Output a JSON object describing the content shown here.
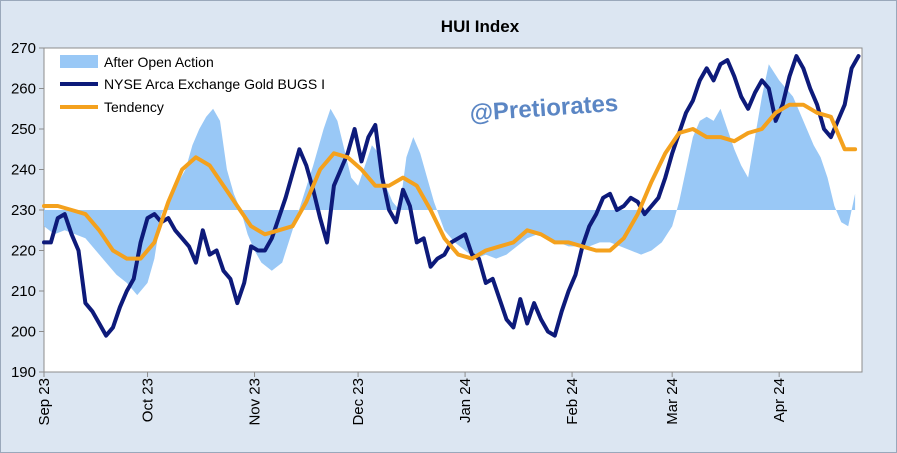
{
  "chart_data": {
    "type": "line",
    "title": "HUI Index",
    "watermark": "@Pretiorates",
    "xlabel": "",
    "ylabel": "",
    "ylim": [
      190,
      270
    ],
    "yticks": [
      190,
      200,
      210,
      220,
      230,
      240,
      250,
      260,
      270
    ],
    "xlim": [
      "2023-09-01",
      "2024-04-25"
    ],
    "xticks": [
      {
        "date": "2023-09-01",
        "label": "Sep 23"
      },
      {
        "date": "2023-10-01",
        "label": "Oct 23"
      },
      {
        "date": "2023-11-01",
        "label": "Nov 23"
      },
      {
        "date": "2023-12-01",
        "label": "Dec 23"
      },
      {
        "date": "2024-01-01",
        "label": "Jan 24"
      },
      {
        "date": "2024-02-01",
        "label": "Feb 24"
      },
      {
        "date": "2024-03-01",
        "label": "Mar 24"
      },
      {
        "date": "2024-04-01",
        "label": "Apr 24"
      }
    ],
    "area_baseline": 230,
    "legend_position": "top-left",
    "grid": false,
    "colors": {
      "area": "#99c8f6",
      "hui": "#0d1a7a",
      "tendency": "#f4a11d",
      "plot_bg": "#ffffff",
      "frame_bg": "#dce6f2"
    },
    "series": [
      {
        "name": "After Open Action",
        "kind": "area",
        "x": [
          "2023-09-01",
          "2023-09-04",
          "2023-09-07",
          "2023-09-10",
          "2023-09-13",
          "2023-09-16",
          "2023-09-19",
          "2023-09-22",
          "2023-09-25",
          "2023-09-28",
          "2023-10-01",
          "2023-10-03",
          "2023-10-05",
          "2023-10-08",
          "2023-10-10",
          "2023-10-12",
          "2023-10-14",
          "2023-10-16",
          "2023-10-18",
          "2023-10-20",
          "2023-10-22",
          "2023-10-24",
          "2023-10-26",
          "2023-10-28",
          "2023-10-30",
          "2023-11-01",
          "2023-11-03",
          "2023-11-06",
          "2023-11-09",
          "2023-11-12",
          "2023-11-15",
          "2023-11-18",
          "2023-11-21",
          "2023-11-23",
          "2023-11-25",
          "2023-11-27",
          "2023-11-29",
          "2023-12-01",
          "2023-12-03",
          "2023-12-05",
          "2023-12-07",
          "2023-12-09",
          "2023-12-11",
          "2023-12-13",
          "2023-12-15",
          "2023-12-17",
          "2023-12-19",
          "2023-12-21",
          "2023-12-23",
          "2023-12-26",
          "2023-12-29",
          "2024-01-01",
          "2024-01-04",
          "2024-01-07",
          "2024-01-10",
          "2024-01-13",
          "2024-01-16",
          "2024-01-19",
          "2024-01-22",
          "2024-01-25",
          "2024-01-28",
          "2024-01-31",
          "2024-02-03",
          "2024-02-06",
          "2024-02-09",
          "2024-02-12",
          "2024-02-15",
          "2024-02-18",
          "2024-02-21",
          "2024-02-24",
          "2024-02-27",
          "2024-03-01",
          "2024-03-03",
          "2024-03-05",
          "2024-03-07",
          "2024-03-09",
          "2024-03-11",
          "2024-03-13",
          "2024-03-15",
          "2024-03-17",
          "2024-03-19",
          "2024-03-21",
          "2024-03-23",
          "2024-03-25",
          "2024-03-27",
          "2024-03-29",
          "2024-04-01",
          "2024-04-03",
          "2024-04-05",
          "2024-04-07",
          "2024-04-09",
          "2024-04-11",
          "2024-04-13",
          "2024-04-15",
          "2024-04-17",
          "2024-04-19",
          "2024-04-21",
          "2024-04-23"
        ],
        "values": [
          226,
          224,
          225,
          224,
          223,
          220,
          217,
          214,
          212,
          209,
          212,
          218,
          229,
          234,
          237,
          240,
          246,
          250,
          253,
          255,
          252,
          240,
          234,
          230,
          224,
          220,
          217,
          215,
          217,
          225,
          233,
          241,
          250,
          255,
          252,
          245,
          238,
          236,
          241,
          246,
          244,
          236,
          232,
          230,
          243,
          248,
          244,
          238,
          232,
          225,
          222,
          220,
          218,
          219,
          218,
          219,
          221,
          223,
          224,
          223,
          222,
          221,
          221,
          221,
          222,
          222,
          221,
          220,
          219,
          220,
          222,
          226,
          232,
          240,
          248,
          252,
          253,
          252,
          255,
          250,
          245,
          241,
          238,
          248,
          258,
          266,
          262,
          260,
          258,
          254,
          250,
          246,
          243,
          238,
          231,
          227,
          226,
          234
        ]
      },
      {
        "name": "NYSE Arca Exchange Gold BUGS I",
        "kind": "line",
        "x": [
          "2023-09-01",
          "2023-09-03",
          "2023-09-05",
          "2023-09-07",
          "2023-09-09",
          "2023-09-11",
          "2023-09-13",
          "2023-09-15",
          "2023-09-17",
          "2023-09-19",
          "2023-09-21",
          "2023-09-23",
          "2023-09-25",
          "2023-09-27",
          "2023-09-29",
          "2023-10-01",
          "2023-10-03",
          "2023-10-05",
          "2023-10-07",
          "2023-10-09",
          "2023-10-11",
          "2023-10-13",
          "2023-10-15",
          "2023-10-17",
          "2023-10-19",
          "2023-10-21",
          "2023-10-23",
          "2023-10-25",
          "2023-10-27",
          "2023-10-29",
          "2023-10-31",
          "2023-11-02",
          "2023-11-04",
          "2023-11-06",
          "2023-11-08",
          "2023-11-10",
          "2023-11-12",
          "2023-11-14",
          "2023-11-16",
          "2023-11-18",
          "2023-11-20",
          "2023-11-22",
          "2023-11-24",
          "2023-11-26",
          "2023-11-28",
          "2023-11-30",
          "2023-12-02",
          "2023-12-04",
          "2023-12-06",
          "2023-12-08",
          "2023-12-10",
          "2023-12-12",
          "2023-12-14",
          "2023-12-16",
          "2023-12-18",
          "2023-12-20",
          "2023-12-22",
          "2023-12-24",
          "2023-12-26",
          "2023-12-28",
          "2023-12-30",
          "2024-01-01",
          "2024-01-03",
          "2024-01-05",
          "2024-01-07",
          "2024-01-09",
          "2024-01-11",
          "2024-01-13",
          "2024-01-15",
          "2024-01-17",
          "2024-01-19",
          "2024-01-21",
          "2024-01-23",
          "2024-01-25",
          "2024-01-27",
          "2024-01-29",
          "2024-01-31",
          "2024-02-02",
          "2024-02-04",
          "2024-02-06",
          "2024-02-08",
          "2024-02-10",
          "2024-02-12",
          "2024-02-14",
          "2024-02-16",
          "2024-02-18",
          "2024-02-20",
          "2024-02-22",
          "2024-02-24",
          "2024-02-26",
          "2024-02-28",
          "2024-03-01",
          "2024-03-03",
          "2024-03-05",
          "2024-03-07",
          "2024-03-09",
          "2024-03-11",
          "2024-03-13",
          "2024-03-15",
          "2024-03-17",
          "2024-03-19",
          "2024-03-21",
          "2024-03-23",
          "2024-03-25",
          "2024-03-27",
          "2024-03-29",
          "2024-03-31",
          "2024-04-02",
          "2024-04-04",
          "2024-04-06",
          "2024-04-08",
          "2024-04-10",
          "2024-04-12",
          "2024-04-14",
          "2024-04-16",
          "2024-04-18",
          "2024-04-20",
          "2024-04-22",
          "2024-04-24"
        ],
        "values": [
          222,
          222,
          228,
          229,
          224,
          220,
          207,
          205,
          202,
          199,
          201,
          206,
          210,
          213,
          222,
          228,
          229,
          227,
          228,
          225,
          223,
          221,
          217,
          225,
          219,
          220,
          215,
          213,
          207,
          212,
          221,
          220,
          220,
          223,
          228,
          233,
          239,
          245,
          241,
          235,
          228,
          222,
          236,
          240,
          244,
          250,
          242,
          248,
          251,
          238,
          230,
          227,
          235,
          231,
          222,
          223,
          216,
          218,
          219,
          222,
          223,
          224,
          219,
          218,
          212,
          213,
          208,
          203,
          201,
          208,
          202,
          207,
          203,
          200,
          199,
          205,
          210,
          214,
          221,
          226,
          229,
          233,
          234,
          230,
          231,
          233,
          232,
          229,
          231,
          233,
          238,
          244,
          249,
          254,
          257,
          262,
          265,
          262,
          266,
          267,
          263,
          258,
          255,
          259,
          262,
          260,
          252,
          256,
          263,
          268,
          265,
          260,
          256,
          250,
          248,
          252,
          256,
          265,
          268
        ]
      },
      {
        "name": "Tendency",
        "kind": "line",
        "x": [
          "2023-09-01",
          "2023-09-05",
          "2023-09-09",
          "2023-09-13",
          "2023-09-17",
          "2023-09-21",
          "2023-09-25",
          "2023-09-29",
          "2023-10-03",
          "2023-10-07",
          "2023-10-11",
          "2023-10-15",
          "2023-10-19",
          "2023-10-23",
          "2023-10-27",
          "2023-10-31",
          "2023-11-04",
          "2023-11-08",
          "2023-11-12",
          "2023-11-16",
          "2023-11-20",
          "2023-11-24",
          "2023-11-28",
          "2023-12-02",
          "2023-12-06",
          "2023-12-10",
          "2023-12-14",
          "2023-12-18",
          "2023-12-22",
          "2023-12-26",
          "2023-12-30",
          "2024-01-03",
          "2024-01-07",
          "2024-01-11",
          "2024-01-15",
          "2024-01-19",
          "2024-01-23",
          "2024-01-27",
          "2024-01-31",
          "2024-02-04",
          "2024-02-08",
          "2024-02-12",
          "2024-02-16",
          "2024-02-20",
          "2024-02-24",
          "2024-02-28",
          "2024-03-03",
          "2024-03-07",
          "2024-03-11",
          "2024-03-15",
          "2024-03-19",
          "2024-03-23",
          "2024-03-27",
          "2024-03-31",
          "2024-04-04",
          "2024-04-08",
          "2024-04-12",
          "2024-04-16",
          "2024-04-20",
          "2024-04-23"
        ],
        "values": [
          231,
          231,
          230,
          229,
          225,
          220,
          218,
          218,
          222,
          232,
          240,
          243,
          241,
          236,
          231,
          226,
          224,
          225,
          226,
          232,
          240,
          244,
          243,
          240,
          236,
          236,
          238,
          236,
          230,
          223,
          219,
          218,
          220,
          221,
          222,
          225,
          224,
          222,
          222,
          221,
          220,
          220,
          223,
          229,
          237,
          244,
          249,
          250,
          248,
          248,
          247,
          249,
          250,
          254,
          256,
          256,
          254,
          253,
          245,
          245
        ]
      }
    ]
  }
}
